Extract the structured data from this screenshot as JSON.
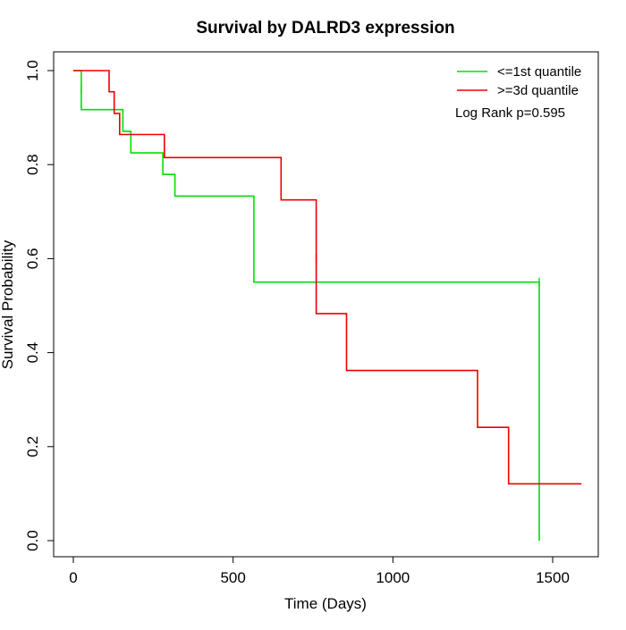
{
  "chart_data": {
    "type": "line",
    "subtype": "kaplan-meier-step",
    "title": "Survival by DALRD3 expression",
    "xlabel": "Time (Days)",
    "ylabel": "Survival Probability",
    "xlim": [
      0,
      1600
    ],
    "ylim": [
      0,
      1.0
    ],
    "x_ticks": [
      0,
      500,
      1000,
      1500
    ],
    "x_tick_labels": [
      "0",
      "500",
      "1000",
      "1500"
    ],
    "y_ticks": [
      0.0,
      0.2,
      0.4,
      0.6,
      0.8,
      1.0
    ],
    "y_tick_labels": [
      "0.0",
      "0.2",
      "0.4",
      "0.6",
      "0.8",
      "1.0"
    ],
    "grid": false,
    "legend_position": "top-right",
    "annotation": "Log Rank p=0.595",
    "series": [
      {
        "name": "<=1st quantile",
        "color": "#00e000",
        "x": [
          0,
          25,
          25,
          155,
          155,
          180,
          180,
          280,
          280,
          318,
          318,
          565,
          565,
          1458,
          1458
        ],
        "y": [
          1.0,
          1.0,
          0.917,
          0.917,
          0.871,
          0.871,
          0.825,
          0.825,
          0.779,
          0.779,
          0.733,
          0.733,
          0.55,
          0.55,
          0.0
        ],
        "censor_x": [
          25,
          1458
        ],
        "censor_y": [
          0.96,
          0.55
        ]
      },
      {
        "name": ">=3d quantile",
        "color": "#ee0000",
        "x": [
          0,
          112,
          112,
          128,
          128,
          145,
          145,
          285,
          285,
          650,
          650,
          760,
          760,
          855,
          855,
          1265,
          1265,
          1362,
          1362,
          1590
        ],
        "y": [
          1.0,
          1.0,
          0.955,
          0.955,
          0.909,
          0.909,
          0.864,
          0.864,
          0.815,
          0.815,
          0.725,
          0.725,
          0.483,
          0.483,
          0.362,
          0.362,
          0.241,
          0.241,
          0.121,
          0.121
        ],
        "censor_x": [
          760
        ],
        "censor_y": [
          0.6
        ]
      }
    ]
  }
}
